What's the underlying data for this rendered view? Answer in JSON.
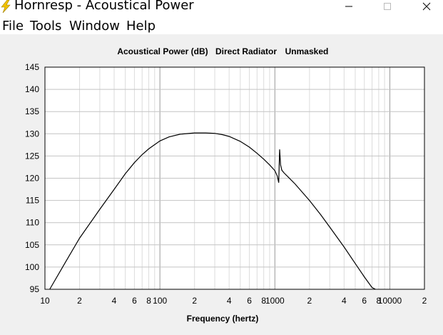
{
  "window": {
    "title": "Hornresp - Acoustical Power",
    "menu": [
      "File",
      "Tools",
      "Window",
      "Help"
    ]
  },
  "chart_data": {
    "type": "line",
    "title_parts": [
      "Acoustical Power (dB)",
      "Direct Radiator",
      "Unmasked"
    ],
    "xlabel": "Frequency (hertz)",
    "ylabel": "",
    "x_scale": "log",
    "xlim": [
      10,
      20000
    ],
    "ylim": [
      95,
      145
    ],
    "y_ticks": [
      95,
      100,
      105,
      110,
      115,
      120,
      125,
      130,
      135,
      140,
      145
    ],
    "x_tick_labels": [
      {
        "x": 10,
        "label": "10"
      },
      {
        "x": 20,
        "label": "2"
      },
      {
        "x": 40,
        "label": "4"
      },
      {
        "x": 60,
        "label": "6"
      },
      {
        "x": 80,
        "label": "8"
      },
      {
        "x": 100,
        "label": "100"
      },
      {
        "x": 200,
        "label": "2"
      },
      {
        "x": 400,
        "label": "4"
      },
      {
        "x": 600,
        "label": "6"
      },
      {
        "x": 800,
        "label": "8"
      },
      {
        "x": 1000,
        "label": "1000"
      },
      {
        "x": 2000,
        "label": "2"
      },
      {
        "x": 4000,
        "label": "4"
      },
      {
        "x": 6000,
        "label": "6"
      },
      {
        "x": 8000,
        "label": "8"
      },
      {
        "x": 10000,
        "label": "10000"
      },
      {
        "x": 20000,
        "label": "2"
      }
    ],
    "grid": true,
    "series": [
      {
        "color": "#000000",
        "x": [
          11,
          15,
          20,
          30,
          40,
          50,
          60,
          70,
          80,
          100,
          120,
          150,
          200,
          250,
          300,
          350,
          400,
          500,
          600,
          700,
          800,
          900,
          1000,
          1050,
          1080,
          1100,
          1120,
          1150,
          1200,
          1300,
          1500,
          2000,
          2500,
          3000,
          4000,
          5000,
          6000,
          7000,
          7500
        ],
        "y": [
          95,
          101,
          106.5,
          113,
          117.5,
          121,
          123.5,
          125.3,
          126.6,
          128.4,
          129.3,
          129.9,
          130.2,
          130.2,
          130.1,
          129.8,
          129.4,
          128.3,
          127.0,
          125.6,
          124.3,
          123.0,
          121.7,
          120.5,
          119.0,
          126.5,
          123.0,
          121.8,
          121.2,
          120.3,
          118.7,
          115.0,
          111.8,
          109.0,
          104.5,
          100.8,
          97.8,
          95.4,
          94.6
        ]
      }
    ]
  }
}
